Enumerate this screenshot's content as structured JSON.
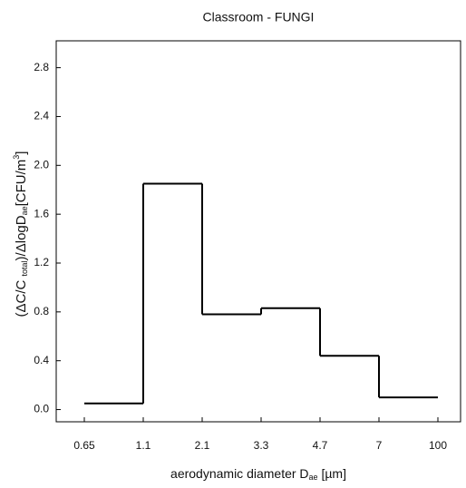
{
  "chart_data": {
    "type": "histogram",
    "title": "Classroom - FUNGI",
    "xlabel": [
      "aerodynamic diameter D",
      "ae",
      " [µm]"
    ],
    "ylabel": [
      "(ΔC/C ",
      "total",
      ")/ΔlogD",
      "ae",
      "[CFU/m",
      "3",
      "]"
    ],
    "bins": [
      "0.65",
      "1.1",
      "2.1",
      "3.3",
      "4.7",
      "7",
      "100"
    ],
    "values": [
      0.05,
      1.85,
      0.78,
      0.83,
      0.44,
      0.1
    ],
    "color": "#000000",
    "ylim": [
      -0.1,
      3.02
    ],
    "yticks": [
      {
        "value": 0,
        "label": "0.0"
      },
      {
        "value": 0.4,
        "label": "0.4"
      },
      {
        "value": 0.8,
        "label": "0.8"
      },
      {
        "value": 1.2,
        "label": "1.2"
      },
      {
        "value": 1.6,
        "label": "1.6"
      },
      {
        "value": 2,
        "label": "2.0"
      },
      {
        "value": 2.4,
        "label": "2.4"
      },
      {
        "value": 2.8,
        "label": "2.8"
      }
    ]
  }
}
